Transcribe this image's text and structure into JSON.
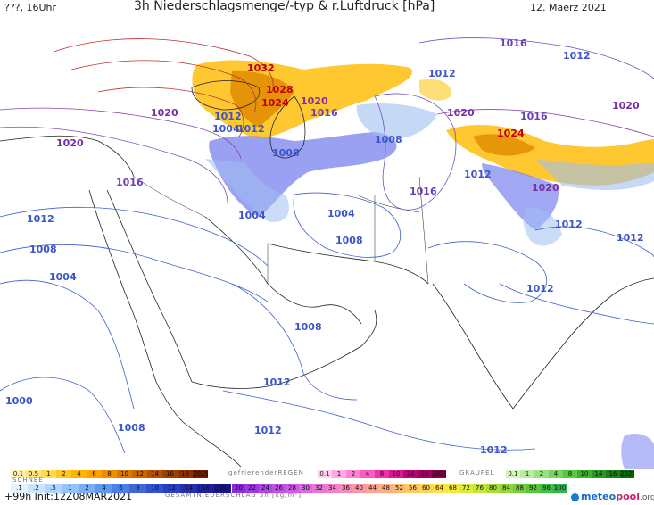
{
  "header": {
    "run_label": "???, 16Uhr",
    "title": "3h Niederschlagsmenge/-typ & r.Luftdruck [hPa]",
    "date": "12. Maerz 2021"
  },
  "isobars": [
    {
      "text": "1032",
      "color": "#c00000"
    },
    {
      "text": "1028",
      "color": "#c00000"
    },
    {
      "text": "1024",
      "color": "#c00000"
    },
    {
      "text": "1020",
      "color": "#7a2fa8"
    },
    {
      "text": "1016",
      "color": "#6a3fb8"
    },
    {
      "text": "1012",
      "color": "#3b56c8"
    },
    {
      "text": "1012",
      "color": "#3b56c8"
    },
    {
      "text": "1008",
      "color": "#3b56c8"
    },
    {
      "text": "1004",
      "color": "#3b56c8"
    },
    {
      "text": "1020",
      "color": "#7a2fa8"
    },
    {
      "text": "1020",
      "color": "#7a2fa8"
    },
    {
      "text": "1016",
      "color": "#6a3fb8"
    },
    {
      "text": "1012",
      "color": "#3b56c8"
    },
    {
      "text": "1008",
      "color": "#3b56c8"
    },
    {
      "text": "1004",
      "color": "#3b56c8"
    },
    {
      "text": "1004",
      "color": "#3b56c8"
    },
    {
      "text": "1004",
      "color": "#3b56c8"
    },
    {
      "text": "1008",
      "color": "#3b56c8"
    },
    {
      "text": "1016",
      "color": "#6a3fb8"
    },
    {
      "text": "1008",
      "color": "#3b56c8"
    },
    {
      "text": "1008",
      "color": "#3b56c8"
    },
    {
      "text": "1012",
      "color": "#3b56c8"
    },
    {
      "text": "1000",
      "color": "#3b56c8"
    },
    {
      "text": "1008",
      "color": "#3b56c8"
    },
    {
      "text": "1012",
      "color": "#3b56c8"
    },
    {
      "text": "1012",
      "color": "#3b56c8"
    },
    {
      "text": "1012",
      "color": "#3b56c8"
    },
    {
      "text": "1016",
      "color": "#6a3fb8"
    },
    {
      "text": "1016",
      "color": "#6a3fb8"
    },
    {
      "text": "1020",
      "color": "#7a2fa8"
    },
    {
      "text": "1024",
      "color": "#c00000"
    },
    {
      "text": "1012",
      "color": "#3b56c8"
    },
    {
      "text": "1020",
      "color": "#7a2fa8"
    },
    {
      "text": "1012",
      "color": "#3b56c8"
    },
    {
      "text": "1012",
      "color": "#3b56c8"
    },
    {
      "text": "1012",
      "color": "#3b56c8"
    },
    {
      "text": "1012",
      "color": "#3b56c8"
    },
    {
      "text": "1020",
      "color": "#7a2fa8"
    }
  ],
  "legend": {
    "rain_label": "RAIN",
    "rain_values": [
      "0.1",
      "0.5",
      "1",
      "2",
      "4",
      "6",
      "8",
      "10",
      "12",
      "14",
      "16",
      "18",
      "2025+"
    ],
    "rain_colors": [
      "#fff2b0",
      "#ffe680",
      "#ffd84d",
      "#ffc726",
      "#ffb400",
      "#ffa000",
      "#f08c00",
      "#dc7800",
      "#c86400",
      "#b45000",
      "#a04000",
      "#8c3000",
      "#6a2000"
    ],
    "freezing_label": "gefrierenderREGEN",
    "freezing_values": [
      "0.1",
      "1",
      "2",
      "4",
      "8",
      "10",
      "14",
      "16",
      "2025+"
    ],
    "freezing_colors": [
      "#ffd0ef",
      "#ffaae0",
      "#ff82d0",
      "#ff5ac0",
      "#f030a8",
      "#d81890",
      "#c00078",
      "#a00060",
      "#800048"
    ],
    "graupel_label": "GRAUPEL",
    "graupel_values": [
      "0.1",
      "1",
      "2",
      "4",
      "8",
      "10",
      "14",
      "16",
      "2025+"
    ],
    "graupel_colors": [
      "#d8f5c0",
      "#b8eca0",
      "#98e080",
      "#78d460",
      "#58c840",
      "#40b030",
      "#2c9824",
      "#1c8018",
      "#0c680c"
    ],
    "snow_label": "SCHNEE",
    "snow_values": [
      ".1",
      ".2",
      ".5",
      "1",
      "2",
      "4",
      "6",
      "8",
      "10",
      "12",
      "14",
      "16",
      "18"
    ],
    "snow_colors": [
      "#e6f2ff",
      "#cce4ff",
      "#b0d4ff",
      "#94c2ff",
      "#78aef8",
      "#5c98f0",
      "#4a80e8",
      "#3c68dc",
      "#3050d0",
      "#2840c0",
      "#2430ae",
      "#20209a",
      "#181486"
    ],
    "total_values": [
      "20",
      "22",
      "24",
      "26",
      "28",
      "30",
      "32",
      "34",
      "36",
      "40",
      "44",
      "48",
      "52",
      "56",
      "60",
      "64",
      "68",
      "72",
      "76",
      "80",
      "84",
      "88",
      "92",
      "96",
      "100"
    ],
    "total_colors": [
      "#8a2ad8",
      "#9c3ae0",
      "#ac46e4",
      "#be52e6",
      "#cc5ee6",
      "#dc6ae0",
      "#e876d6",
      "#f280c8",
      "#f88cb8",
      "#fc98a6",
      "#ffa494",
      "#ffb082",
      "#ffbc72",
      "#ffc862",
      "#ffd454",
      "#ffe046",
      "#f2ea3c",
      "#dcea38",
      "#c4e636",
      "#aade36",
      "#90d638",
      "#76ce3a",
      "#5cc63e",
      "#44be44",
      "#30b64c"
    ],
    "total_label": "GESAMTNIEDERSCHLAG 3h [kg/m²]"
  },
  "footer": {
    "forecast": "+99h Init:12Z08MAR2021",
    "brand_meteo": "meteo",
    "brand_pool": "pool",
    "brand_org": ".org"
  }
}
